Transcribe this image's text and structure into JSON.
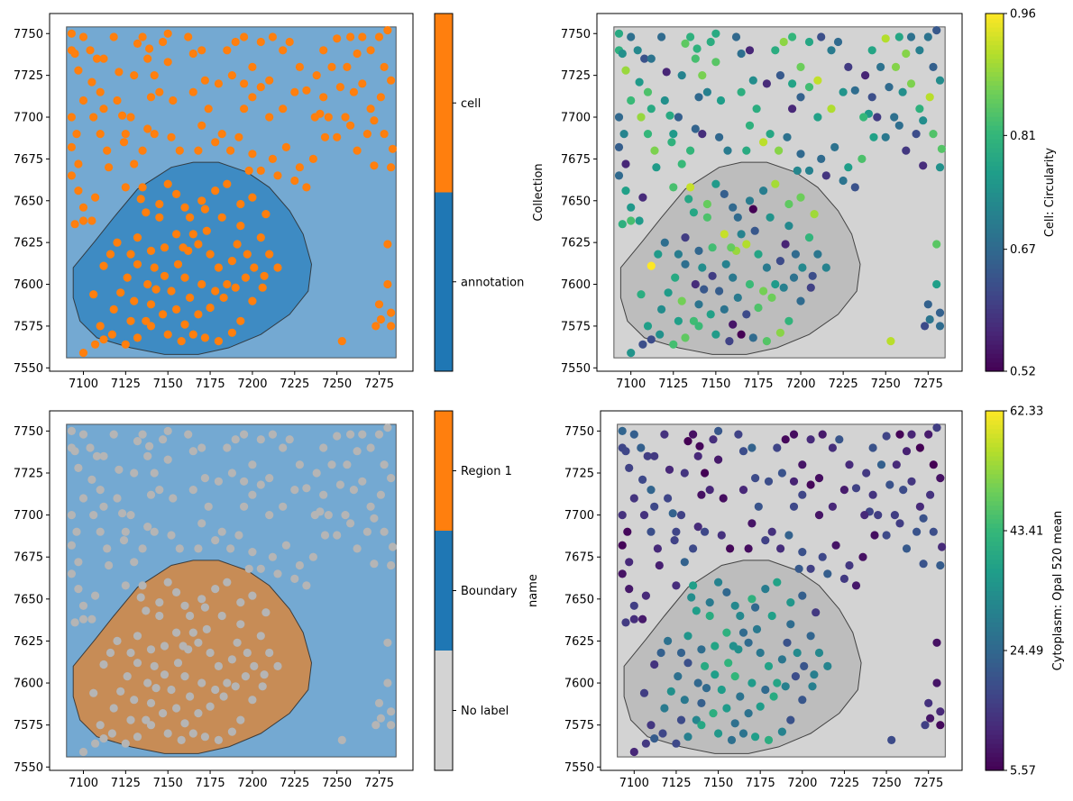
{
  "chart_data": [
    {
      "type": "scatter",
      "title": "",
      "x_ticks": [
        "7100",
        "7125",
        "7150",
        "7175",
        "7200",
        "7225",
        "7250",
        "7275"
      ],
      "y_ticks": [
        "7550",
        "7575",
        "7600",
        "7625",
        "7650",
        "7675",
        "7700",
        "7725",
        "7750"
      ],
      "xlim": [
        7080,
        7295
      ],
      "ylim": [
        7548,
        7762
      ],
      "colorbar": {
        "label": "Collection",
        "categories": [
          "annotation",
          "cell"
        ],
        "colors": [
          "#1f77b4",
          "#ff7f0e"
        ]
      },
      "point_color": "#ff7f0e",
      "background_color": "#74a9d2",
      "region_color": "#3e8bc3",
      "series": [
        {
          "name": "cell"
        }
      ]
    },
    {
      "type": "scatter",
      "title": "",
      "x_ticks": [
        "7100",
        "7125",
        "7150",
        "7175",
        "7200",
        "7225",
        "7250",
        "7275"
      ],
      "y_ticks": [
        "7550",
        "7575",
        "7600",
        "7625",
        "7650",
        "7675",
        "7700",
        "7725",
        "7750"
      ],
      "xlim": [
        7080,
        7295
      ],
      "ylim": [
        7548,
        7762
      ],
      "colorbar": {
        "label": "Cell: Circularity",
        "min": 0.52,
        "max": 0.96,
        "ticks": [
          "0.52",
          "0.67",
          "0.81",
          "0.96"
        ],
        "colormap": "viridis"
      },
      "background_color": "#d3d3d3",
      "region_color": "#bdbdbd"
    },
    {
      "type": "scatter",
      "title": "",
      "x_ticks": [
        "7100",
        "7125",
        "7150",
        "7175",
        "7200",
        "7225",
        "7250",
        "7275"
      ],
      "y_ticks": [
        "7550",
        "7575",
        "7600",
        "7625",
        "7650",
        "7675",
        "7700",
        "7725",
        "7750"
      ],
      "xlim": [
        7080,
        7295
      ],
      "ylim": [
        7548,
        7762
      ],
      "colorbar": {
        "label": "name",
        "categories": [
          "No label",
          "Boundary",
          "Region 1"
        ],
        "colors": [
          "#d3d3d3",
          "#1f77b4",
          "#ff7f0e"
        ]
      },
      "point_color": "#b5b5b5",
      "background_color": "#74a9d2",
      "region_color": "#c78c56"
    },
    {
      "type": "scatter",
      "title": "",
      "x_ticks": [
        "7100",
        "7125",
        "7150",
        "7175",
        "7200",
        "7225",
        "7250",
        "7275"
      ],
      "y_ticks": [
        "7550",
        "7575",
        "7600",
        "7625",
        "7650",
        "7675",
        "7700",
        "7725",
        "7750"
      ],
      "xlim": [
        7080,
        7295
      ],
      "ylim": [
        7548,
        7762
      ],
      "colorbar": {
        "label": "Cytoplasm: Opal 520 mean",
        "min": 5.57,
        "max": 62.33,
        "ticks": [
          "5.57",
          "24.49",
          "43.41",
          "62.33"
        ],
        "colormap": "viridis"
      },
      "background_color": "#d3d3d3",
      "region_color": "#bdbdbd"
    }
  ],
  "shared_data": {
    "boundary_rect": {
      "x0": 7090,
      "x1": 7285,
      "y0": 7556,
      "y1": 7754
    },
    "region_polygon": [
      [
        7107,
        7626
      ],
      [
        7118,
        7640
      ],
      [
        7132,
        7657
      ],
      [
        7152,
        7670
      ],
      [
        7165,
        7673
      ],
      [
        7180,
        7673
      ],
      [
        7197,
        7667
      ],
      [
        7210,
        7658
      ],
      [
        7222,
        7644
      ],
      [
        7230,
        7630
      ],
      [
        7235,
        7612
      ],
      [
        7233,
        7596
      ],
      [
        7222,
        7582
      ],
      [
        7205,
        7570
      ],
      [
        7186,
        7562
      ],
      [
        7168,
        7558
      ],
      [
        7148,
        7558
      ],
      [
        7128,
        7562
      ],
      [
        7108,
        7568
      ],
      [
        7098,
        7578
      ],
      [
        7094,
        7592
      ],
      [
        7094,
        7610
      ]
    ],
    "cells": [
      [
        7093,
        7750
      ],
      [
        7093,
        7740
      ],
      [
        7095,
        7738
      ],
      [
        7100,
        7748
      ],
      [
        7097,
        7728
      ],
      [
        7100,
        7710
      ],
      [
        7093,
        7700
      ],
      [
        7096,
        7690
      ],
      [
        7093,
        7682
      ],
      [
        7097,
        7672
      ],
      [
        7093,
        7665
      ],
      [
        7097,
        7656
      ],
      [
        7100,
        7646
      ],
      [
        7095,
        7636
      ],
      [
        7100,
        7638
      ],
      [
        7104,
        7740
      ],
      [
        7108,
        7735
      ],
      [
        7105,
        7721
      ],
      [
        7110,
        7715
      ],
      [
        7106,
        7700
      ],
      [
        7112,
        7705
      ],
      [
        7110,
        7690
      ],
      [
        7114,
        7680
      ],
      [
        7115,
        7670
      ],
      [
        7107,
        7652
      ],
      [
        7105,
        7638
      ],
      [
        7112,
        7735
      ],
      [
        7118,
        7748
      ],
      [
        7121,
        7727
      ],
      [
        7120,
        7710
      ],
      [
        7123,
        7701
      ],
      [
        7125,
        7690
      ],
      [
        7128,
        7700
      ],
      [
        7130,
        7725
      ],
      [
        7132,
        7744
      ],
      [
        7135,
        7748
      ],
      [
        7138,
        7735
      ],
      [
        7142,
        7725
      ],
      [
        7140,
        7712
      ],
      [
        7145,
        7715
      ],
      [
        7138,
        7693
      ],
      [
        7135,
        7680
      ],
      [
        7130,
        7672
      ],
      [
        7124,
        7685
      ],
      [
        7125,
        7658
      ],
      [
        7135,
        7658
      ],
      [
        7139,
        7741
      ],
      [
        7147,
        7745
      ],
      [
        7150,
        7750
      ],
      [
        7150,
        7733
      ],
      [
        7153,
        7710
      ],
      [
        7152,
        7688
      ],
      [
        7157,
        7680
      ],
      [
        7150,
        7660
      ],
      [
        7142,
        7690
      ],
      [
        7162,
        7748
      ],
      [
        7165,
        7738
      ],
      [
        7170,
        7740
      ],
      [
        7165,
        7715
      ],
      [
        7172,
        7722
      ],
      [
        7174,
        7705
      ],
      [
        7170,
        7695
      ],
      [
        7168,
        7680
      ],
      [
        7178,
        7685
      ],
      [
        7182,
        7690
      ],
      [
        7180,
        7720
      ],
      [
        7185,
        7740
      ],
      [
        7190,
        7745
      ],
      [
        7195,
        7748
      ],
      [
        7188,
        7725
      ],
      [
        7195,
        7720
      ],
      [
        7200,
        7730
      ],
      [
        7200,
        7712
      ],
      [
        7205,
        7718
      ],
      [
        7210,
        7722
      ],
      [
        7205,
        7745
      ],
      [
        7212,
        7748
      ],
      [
        7218,
        7740
      ],
      [
        7222,
        7745
      ],
      [
        7228,
        7730
      ],
      [
        7225,
        7715
      ],
      [
        7218,
        7705
      ],
      [
        7210,
        7700
      ],
      [
        7195,
        7705
      ],
      [
        7192,
        7688
      ],
      [
        7187,
        7680
      ],
      [
        7200,
        7678
      ],
      [
        7198,
        7668
      ],
      [
        7205,
        7668
      ],
      [
        7212,
        7675
      ],
      [
        7215,
        7665
      ],
      [
        7220,
        7682
      ],
      [
        7225,
        7662
      ],
      [
        7228,
        7670
      ],
      [
        7232,
        7658
      ],
      [
        7236,
        7675
      ],
      [
        7240,
        7702
      ],
      [
        7242,
        7712
      ],
      [
        7245,
        7700
      ],
      [
        7250,
        7688
      ],
      [
        7255,
        7700
      ],
      [
        7252,
        7718
      ],
      [
        7247,
        7730
      ],
      [
        7256,
        7730
      ],
      [
        7262,
        7738
      ],
      [
        7265,
        7748
      ],
      [
        7270,
        7740
      ],
      [
        7275,
        7748
      ],
      [
        7280,
        7752
      ],
      [
        7278,
        7730
      ],
      [
        7282,
        7722
      ],
      [
        7276,
        7712
      ],
      [
        7270,
        7705
      ],
      [
        7268,
        7690
      ],
      [
        7278,
        7690
      ],
      [
        7283,
        7681
      ],
      [
        7272,
        7671
      ],
      [
        7262,
        7680
      ],
      [
        7258,
        7695
      ],
      [
        7265,
        7720
      ],
      [
        7272,
        7698
      ],
      [
        7243,
        7688
      ],
      [
        7237,
        7700
      ],
      [
        7232,
        7716
      ],
      [
        7238,
        7725
      ],
      [
        7242,
        7740
      ],
      [
        7250,
        7747
      ],
      [
        7258,
        7748
      ],
      [
        7260,
        7715
      ],
      [
        7282,
        7670
      ],
      [
        7280,
        7624
      ],
      [
        7280,
        7600
      ],
      [
        7275,
        7588
      ],
      [
        7276,
        7579
      ],
      [
        7273,
        7575
      ],
      [
        7282,
        7583
      ],
      [
        7282,
        7575
      ],
      [
        7253,
        7566
      ],
      [
        7193,
        7635
      ],
      [
        7191,
        7624
      ],
      [
        7188,
        7614
      ],
      [
        7185,
        7600
      ],
      [
        7180,
        7610
      ],
      [
        7175,
        7618
      ],
      [
        7168,
        7624
      ],
      [
        7162,
        7620
      ],
      [
        7156,
        7612
      ],
      [
        7148,
        7605
      ],
      [
        7143,
        7597
      ],
      [
        7140,
        7588
      ],
      [
        7137,
        7578
      ],
      [
        7147,
        7582
      ],
      [
        7155,
        7585
      ],
      [
        7160,
        7576
      ],
      [
        7168,
        7582
      ],
      [
        7175,
        7586
      ],
      [
        7183,
        7592
      ],
      [
        7190,
        7598
      ],
      [
        7196,
        7604
      ],
      [
        7201,
        7610
      ],
      [
        7207,
        7605
      ],
      [
        7210,
        7618
      ],
      [
        7205,
        7628
      ],
      [
        7208,
        7642
      ],
      [
        7200,
        7652
      ],
      [
        7193,
        7648
      ],
      [
        7185,
        7660
      ],
      [
        7178,
        7656
      ],
      [
        7172,
        7645
      ],
      [
        7163,
        7640
      ],
      [
        7155,
        7630
      ],
      [
        7148,
        7622
      ],
      [
        7140,
        7620
      ],
      [
        7132,
        7612
      ],
      [
        7126,
        7604
      ],
      [
        7122,
        7595
      ],
      [
        7118,
        7585
      ],
      [
        7117,
        7570
      ],
      [
        7125,
        7564
      ],
      [
        7132,
        7568
      ],
      [
        7140,
        7575
      ],
      [
        7150,
        7570
      ],
      [
        7158,
        7566
      ],
      [
        7165,
        7570
      ],
      [
        7172,
        7568
      ],
      [
        7180,
        7566
      ],
      [
        7188,
        7571
      ],
      [
        7193,
        7578
      ],
      [
        7200,
        7590
      ],
      [
        7206,
        7598
      ],
      [
        7215,
        7610
      ],
      [
        7116,
        7618
      ],
      [
        7112,
        7611
      ],
      [
        7128,
        7618
      ],
      [
        7132,
        7628
      ],
      [
        7137,
        7643
      ],
      [
        7145,
        7648
      ],
      [
        7155,
        7654
      ],
      [
        7160,
        7646
      ],
      [
        7170,
        7650
      ],
      [
        7182,
        7640
      ],
      [
        7173,
        7632
      ],
      [
        7165,
        7630
      ],
      [
        7159,
        7622
      ],
      [
        7145,
        7640
      ],
      [
        7134,
        7651
      ],
      [
        7106,
        7594
      ],
      [
        7110,
        7575
      ],
      [
        7120,
        7625
      ],
      [
        7160,
        7604
      ],
      [
        7170,
        7600
      ],
      [
        7178,
        7596
      ],
      [
        7163,
        7592
      ],
      [
        7152,
        7596
      ],
      [
        7142,
        7610
      ],
      [
        7130,
        7590
      ],
      [
        7128,
        7578
      ],
      [
        7138,
        7600
      ],
      [
        7197,
        7618
      ],
      [
        7107,
        7564
      ],
      [
        7112,
        7567
      ],
      [
        7100,
        7559
      ]
    ]
  }
}
